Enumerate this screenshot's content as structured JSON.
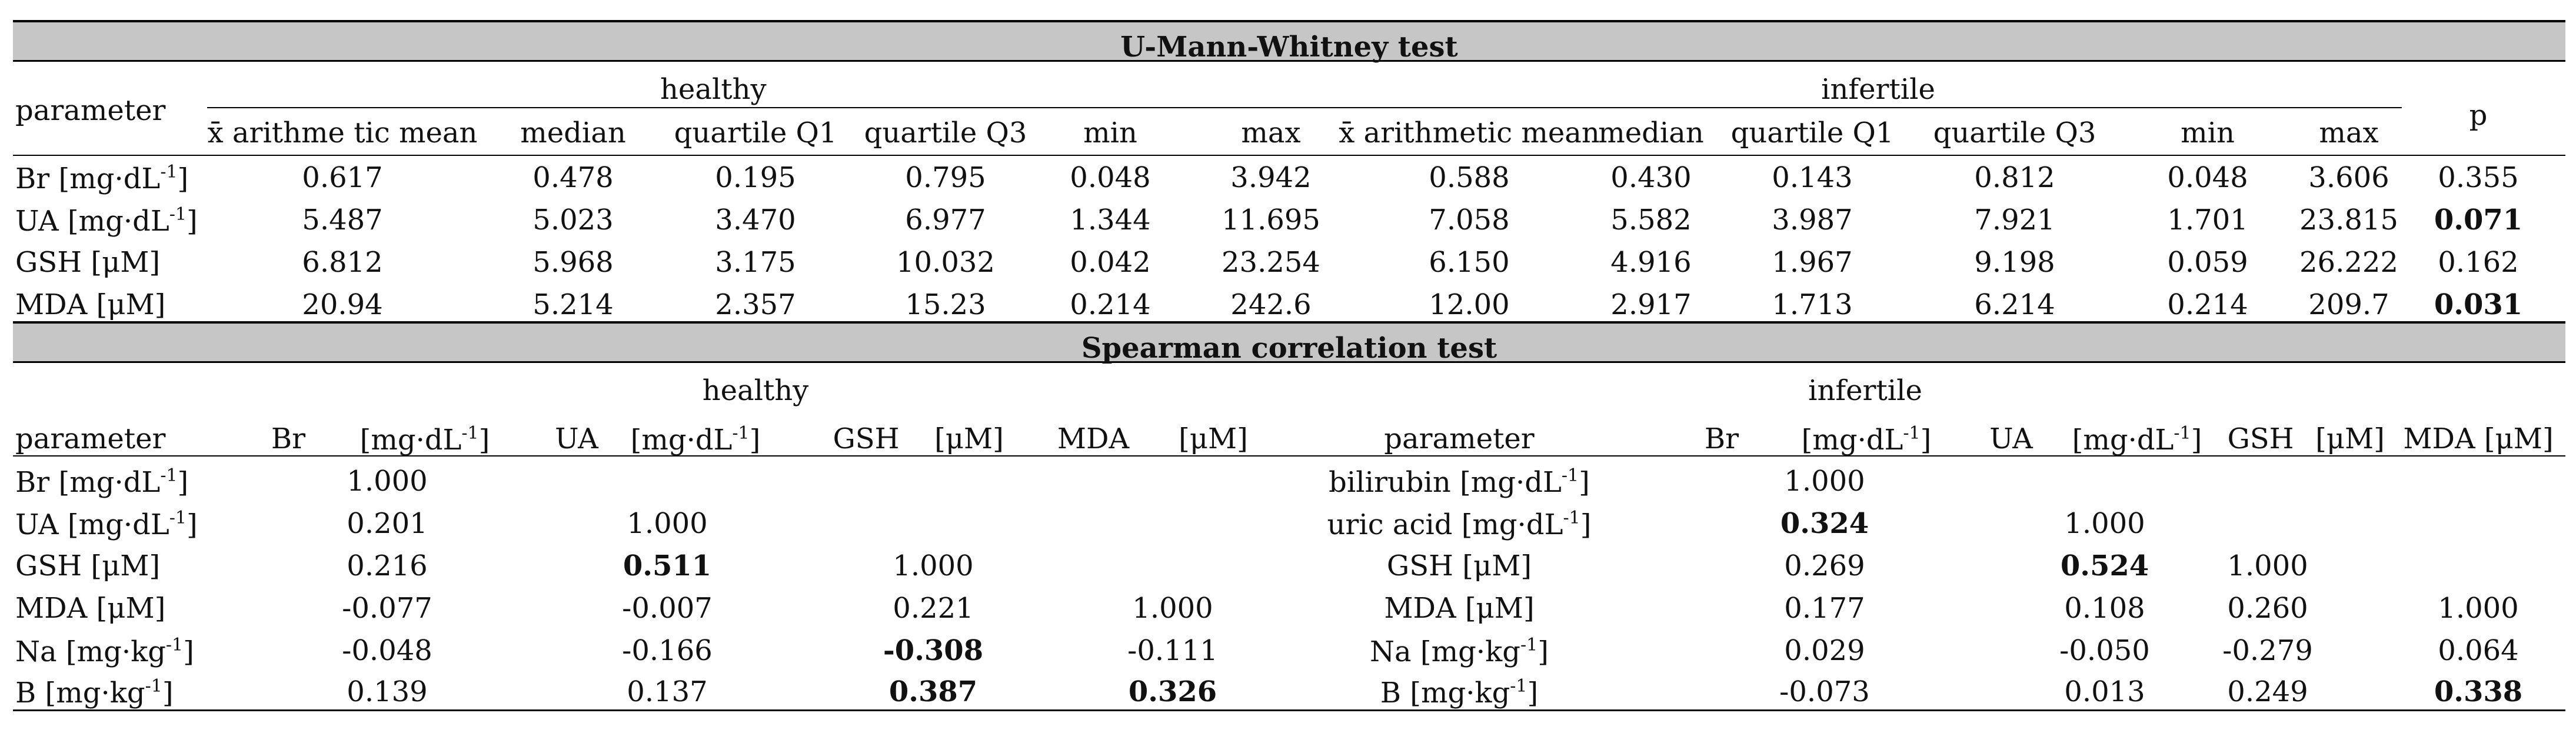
{
  "umw": {
    "title": "U-Mann-Whitney test",
    "param_header": "parameter",
    "group_healthy": "healthy",
    "group_infertile": "infertile",
    "p_header": "p",
    "columns_healthy": [
      "x̄ arithme tic mean",
      "median",
      "quartile Q1",
      "quartile Q3",
      "min",
      "max"
    ],
    "columns_infertile": [
      "x̄ arithmetic mean",
      "median",
      "quartile Q1",
      "quartile Q3",
      "min",
      "max"
    ],
    "rows": [
      {
        "param": "Br [mg·dL",
        "sup": "-1",
        "close": "]",
        "healthy": [
          "0.617",
          "0.478",
          "0.195",
          "0.795",
          "0.048",
          "3.942"
        ],
        "infertile": [
          "0.588",
          "0.430",
          "0.143",
          "0.812",
          "0.048",
          "3.606"
        ],
        "p": "0.355",
        "p_bold": false
      },
      {
        "param": "UA [mg·dL",
        "sup": "-1",
        "close": "]",
        "healthy": [
          "5.487",
          "5.023",
          "3.470",
          "6.977",
          "1.344",
          "11.695"
        ],
        "infertile": [
          "7.058",
          "5.582",
          "3.987",
          "7.921",
          "1.701",
          "23.815"
        ],
        "p": "0.071",
        "p_bold": true
      },
      {
        "param": "GSH [μM]",
        "sup": "",
        "close": "",
        "healthy": [
          "6.812",
          "5.968",
          "3.175",
          "10.032",
          "0.042",
          "23.254"
        ],
        "infertile": [
          "6.150",
          "4.916",
          "1.967",
          "9.198",
          "0.059",
          "26.222"
        ],
        "p": "0.162",
        "p_bold": false
      },
      {
        "param": "MDA [μM]",
        "sup": "",
        "close": "",
        "healthy": [
          "20.94",
          "5.214",
          "2.357",
          "15.23",
          "0.214",
          "242.6"
        ],
        "infertile": [
          "12.00",
          "2.917",
          "1.713",
          "6.214",
          "0.214",
          "209.7"
        ],
        "p": "0.031",
        "p_bold": true
      }
    ]
  },
  "spearman": {
    "title": "Spearman correlation test",
    "group_healthy": "healthy",
    "group_infertile": "infertile",
    "header_left": [
      "parameter",
      "Br",
      "[mg·dL",
      "]",
      "UA",
      "[mg·dL",
      "]",
      "GSH",
      "[μM]",
      "MDA",
      "[μM]"
    ],
    "header_right": [
      "parameter",
      "Br",
      "[mg·dL",
      "]",
      "UA",
      "[mg·dL",
      "]",
      "GSH",
      "[μM]",
      "MDA [μM]"
    ],
    "header_sup": "-1",
    "rows": [
      {
        "lp": "Br [mg·dL",
        "lsup": "-1",
        "lclose": "]",
        "lv": [
          [
            "1.000",
            false
          ],
          [
            "",
            false
          ],
          [
            "",
            false
          ],
          [
            "",
            false
          ]
        ],
        "rp": "bilirubin [mg·dL",
        "rsup": "-1",
        "rclose": "]",
        "rv": [
          [
            "1.000",
            false
          ],
          [
            "",
            false
          ],
          [
            "",
            false
          ],
          [
            "",
            false
          ]
        ]
      },
      {
        "lp": "UA [mg·dL",
        "lsup": "-1",
        "lclose": "]",
        "lv": [
          [
            "0.201",
            false
          ],
          [
            "1.000",
            false
          ],
          [
            "",
            false
          ],
          [
            "",
            false
          ]
        ],
        "rp": "uric acid [mg·dL",
        "rsup": "-1",
        "rclose": "]",
        "rv": [
          [
            "0.324",
            true
          ],
          [
            "1.000",
            false
          ],
          [
            "",
            false
          ],
          [
            "",
            false
          ]
        ]
      },
      {
        "lp": "GSH [μM]",
        "lsup": "",
        "lclose": "",
        "lv": [
          [
            "0.216",
            false
          ],
          [
            "0.511",
            true
          ],
          [
            "1.000",
            false
          ],
          [
            "",
            false
          ]
        ],
        "rp": "GSH [μM]",
        "rsup": "",
        "rclose": "",
        "rv": [
          [
            "0.269",
            false
          ],
          [
            "0.524",
            true
          ],
          [
            "1.000",
            false
          ],
          [
            "",
            false
          ]
        ]
      },
      {
        "lp": "MDA [μM]",
        "lsup": "",
        "lclose": "",
        "lv": [
          [
            "-0.077",
            false
          ],
          [
            "-0.007",
            false
          ],
          [
            "0.221",
            false
          ],
          [
            "1.000",
            false
          ]
        ],
        "rp": "MDA [μM]",
        "rsup": "",
        "rclose": "",
        "rv": [
          [
            "0.177",
            false
          ],
          [
            "0.108",
            false
          ],
          [
            "0.260",
            false
          ],
          [
            "1.000",
            false
          ]
        ]
      },
      {
        "lp": "Na [mg·kg",
        "lsup": "-1",
        "lclose": "]",
        "lv": [
          [
            "-0.048",
            false
          ],
          [
            "-0.166",
            false
          ],
          [
            "-0.308",
            true
          ],
          [
            "-0.111",
            false
          ]
        ],
        "rp": "Na [mg·kg",
        "rsup": "-1",
        "rclose": "]",
        "rv": [
          [
            "0.029",
            false
          ],
          [
            "-0.050",
            false
          ],
          [
            "-0.279",
            false
          ],
          [
            "0.064",
            false
          ]
        ]
      },
      {
        "lp": "B [mg·kg",
        "lsup": "-1",
        "lclose": "]",
        "lv": [
          [
            "0.139",
            false
          ],
          [
            "0.137",
            false
          ],
          [
            "0.387",
            true
          ],
          [
            "0.326",
            true
          ]
        ],
        "rp": "B [mg·kg",
        "rsup": "-1",
        "rclose": "]",
        "rv": [
          [
            "-0.073",
            false
          ],
          [
            "0.013",
            false
          ],
          [
            "0.249",
            false
          ],
          [
            "0.338",
            true
          ]
        ]
      }
    ]
  }
}
